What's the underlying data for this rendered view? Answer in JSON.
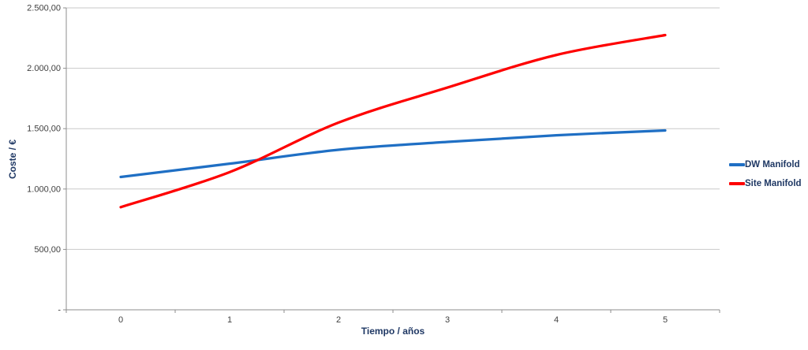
{
  "chart_data": {
    "type": "line",
    "title": "",
    "categories": [
      "0",
      "1",
      "2",
      "3",
      "4",
      "5"
    ],
    "series": [
      {
        "name": "DW Manifold",
        "color": "#1F6FC4",
        "values": [
          1100,
          1210,
          1325,
          1390,
          1445,
          1485
        ]
      },
      {
        "name": "Site Manifold",
        "color": "#FE0000",
        "values": [
          850,
          1140,
          1550,
          1840,
          2110,
          2275
        ]
      }
    ],
    "xlabel": "Tiempo / años",
    "ylabel": "Coste / €",
    "ylim": [
      0,
      2500
    ],
    "y_ticks": [
      {
        "value": 0,
        "label": "-"
      },
      {
        "value": 500,
        "label": "500,00"
      },
      {
        "value": 1000,
        "label": "1.000,00"
      },
      {
        "value": 1500,
        "label": "1.500,00"
      },
      {
        "value": 2000,
        "label": "2.000,00"
      },
      {
        "value": 2500,
        "label": "2.500,00"
      }
    ],
    "grid": true,
    "legend_position": "right",
    "colors": {
      "gridline": "#C9C9C9",
      "axis": "#8E8E8E",
      "tick_label": "#3F3F3F",
      "title_text": "#1F3864",
      "background": "#FFFFFF"
    }
  }
}
